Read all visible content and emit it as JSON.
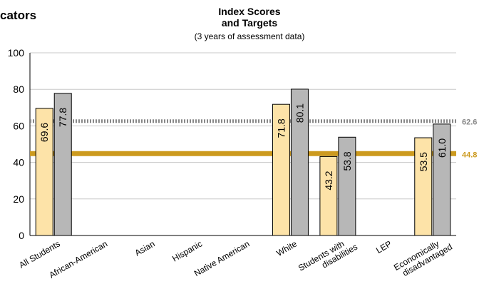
{
  "header": {
    "left_title": "cators"
  },
  "chart_data": {
    "type": "bar",
    "title": "Index Scores\nand Targets",
    "subtitle": "(3 years of assessment data)",
    "xlabel": "",
    "ylabel": "",
    "ylim": [
      0,
      100
    ],
    "yticks": [
      0,
      20,
      40,
      60,
      80,
      100
    ],
    "grid": true,
    "categories": [
      "All Students",
      "African-American",
      "Asian",
      "Hispanic",
      "Native American",
      "White",
      "Students with\ndisabilities",
      "LEP",
      "Economically\ndisadvantaged"
    ],
    "series": [
      {
        "values": [
          69.6,
          null,
          null,
          null,
          null,
          71.8,
          43.2,
          null,
          53.5
        ],
        "color": "#fde3a8"
      },
      {
        "values": [
          77.8,
          null,
          null,
          null,
          null,
          80.1,
          53.8,
          null,
          61.0
        ],
        "color": "#b7b7b7"
      }
    ],
    "targets": [
      {
        "value": 62.6,
        "label": "62.6",
        "style": "dotted",
        "color": "#888888"
      },
      {
        "value": 44.8,
        "label": "44.8",
        "style": "solid",
        "color": "#cc9a1e"
      }
    ]
  }
}
